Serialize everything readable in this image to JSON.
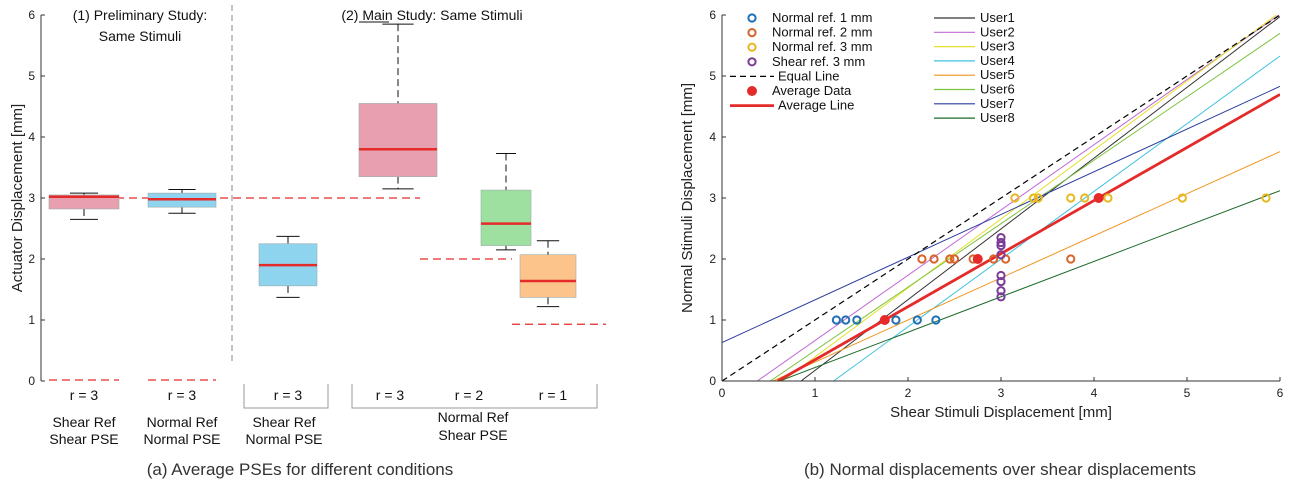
{
  "chart_data": [
    {
      "type": "box",
      "ylabel": "Actuator Displacement [mm]",
      "ylim": [
        0,
        6
      ],
      "yticks": [
        "0",
        "1",
        "2",
        "3",
        "4",
        "5",
        "6"
      ],
      "caption": "(a) Average PSEs for different conditions",
      "section_labels": [
        "(1) Preliminary Study:",
        "Same Stimuli",
        "(2) Main Study:  Same Stimuli"
      ],
      "group_labels": [
        [
          "Shear Ref",
          "Shear PSE"
        ],
        [
          "Normal Ref",
          "Normal PSE"
        ],
        [
          "Shear Ref",
          "Normal PSE"
        ],
        [
          "Normal Ref",
          "Shear PSE"
        ]
      ],
      "reference_line": 3,
      "boxes": [
        {
          "r_label": "r = 3",
          "color": "#e8a0b0",
          "whisker_low": 2.65,
          "q1": 2.82,
          "median": 3.02,
          "q3": 3.05,
          "whisker_high": 3.08,
          "ref": 0
        },
        {
          "r_label": "r = 3",
          "color": "#8fd4ef",
          "whisker_low": 2.75,
          "q1": 2.85,
          "median": 2.98,
          "q3": 3.08,
          "whisker_high": 3.14,
          "ref": 0
        },
        {
          "r_label": "r = 3",
          "color": "#8fd4ef",
          "whisker_low": 1.37,
          "q1": 1.56,
          "median": 1.9,
          "q3": 2.25,
          "whisker_high": 2.37,
          "ref": 3
        },
        {
          "r_label": "r = 3",
          "color": "#e8a0b0",
          "whisker_low": 3.15,
          "q1": 3.35,
          "median": 3.8,
          "q3": 4.55,
          "whisker_high": 5.85,
          "ref": 3
        },
        {
          "r_label": "r = 2",
          "color": "#9ee0a0",
          "whisker_low": 2.15,
          "q1": 2.22,
          "median": 2.58,
          "q3": 3.13,
          "whisker_high": 3.73,
          "ref": 2
        },
        {
          "r_label": "r = 1",
          "color": "#fcc48a",
          "whisker_low": 1.22,
          "q1": 1.37,
          "median": 1.64,
          "q3": 2.07,
          "whisker_high": 2.3,
          "ref": 0.93
        }
      ]
    },
    {
      "type": "scatter",
      "xlabel": "Shear Stimuli Displacement [mm]",
      "ylabel": "Normal Stimuli Displacement [mm]",
      "xlim": [
        0,
        6
      ],
      "ylim": [
        0,
        6
      ],
      "xticks": [
        "0",
        "1",
        "2",
        "3",
        "4",
        "5",
        "6"
      ],
      "yticks": [
        "0",
        "1",
        "2",
        "3",
        "4",
        "5",
        "6"
      ],
      "caption": "(b) Normal displacements over shear displacements",
      "legend_markers": [
        {
          "label": "Normal ref. 1 mm",
          "color": "#1f6fb4",
          "kind": "ring"
        },
        {
          "label": "Normal ref. 2 mm",
          "color": "#d9632a",
          "kind": "ring"
        },
        {
          "label": "Normal ref. 3 mm",
          "color": "#e8b820",
          "kind": "ring"
        },
        {
          "label": "Shear ref. 3 mm",
          "color": "#7b3b98",
          "kind": "ring"
        },
        {
          "label": "Equal Line",
          "color": "#000000",
          "kind": "dash"
        },
        {
          "label": "Average Data",
          "color": "#e52a2a",
          "kind": "dot"
        },
        {
          "label": "Average Line",
          "color": "#e52a2a",
          "kind": "thick"
        }
      ],
      "user_lines": [
        {
          "name": "User1",
          "color": "#333333",
          "x0": 0.85,
          "slope": 1.16
        },
        {
          "name": "User2",
          "color": "#c26ad6",
          "x0": 0.38,
          "slope": 1.07
        },
        {
          "name": "User3",
          "color": "#e6e02a",
          "x0": 0.65,
          "slope": 1.13
        },
        {
          "name": "User4",
          "color": "#3fc2dd",
          "x0": 1.2,
          "slope": 1.11
        },
        {
          "name": "User5",
          "color": "#f0951e",
          "x0": 0.55,
          "slope": 0.69
        },
        {
          "name": "User6",
          "color": "#7cc43c",
          "x0": 0.52,
          "slope": 1.04
        },
        {
          "name": "User7",
          "color": "#2b3b9f",
          "x0": -0.9,
          "slope": 0.7
        },
        {
          "name": "User8",
          "color": "#1d6a2a",
          "x0": 0.62,
          "slope": 0.58
        }
      ],
      "equal_line": {
        "x": [
          0,
          6
        ],
        "y": [
          0,
          6
        ]
      },
      "average_line": {
        "x0": 0.6,
        "slope": 0.87
      },
      "points": {
        "normal_ref_1mm": {
          "x": [
            1.23,
            1.33,
            1.45,
            1.75,
            1.87,
            2.1,
            2.3
          ],
          "y": [
            1,
            1,
            1,
            1,
            1,
            1,
            1
          ]
        },
        "normal_ref_2mm": {
          "x": [
            2.15,
            2.28,
            2.45,
            2.5,
            2.7,
            2.92,
            3.05,
            3.75
          ],
          "y": [
            2,
            2,
            2,
            2,
            2,
            2,
            2,
            2
          ]
        },
        "normal_ref_3mm": {
          "x": [
            3.15,
            3.35,
            3.4,
            3.75,
            3.9,
            4.15,
            4.95,
            5.85
          ],
          "y": [
            3,
            3,
            3,
            3,
            3,
            3,
            3,
            3
          ]
        },
        "shear_ref_3mm": {
          "x": [
            3,
            3,
            3,
            3,
            3,
            3,
            3,
            3
          ],
          "y": [
            1.38,
            1.48,
            1.63,
            1.73,
            2.07,
            2.22,
            2.27,
            2.35
          ]
        },
        "average": {
          "x": [
            1.75,
            2.75,
            4.05
          ],
          "y": [
            1,
            2,
            3
          ]
        }
      }
    }
  ]
}
